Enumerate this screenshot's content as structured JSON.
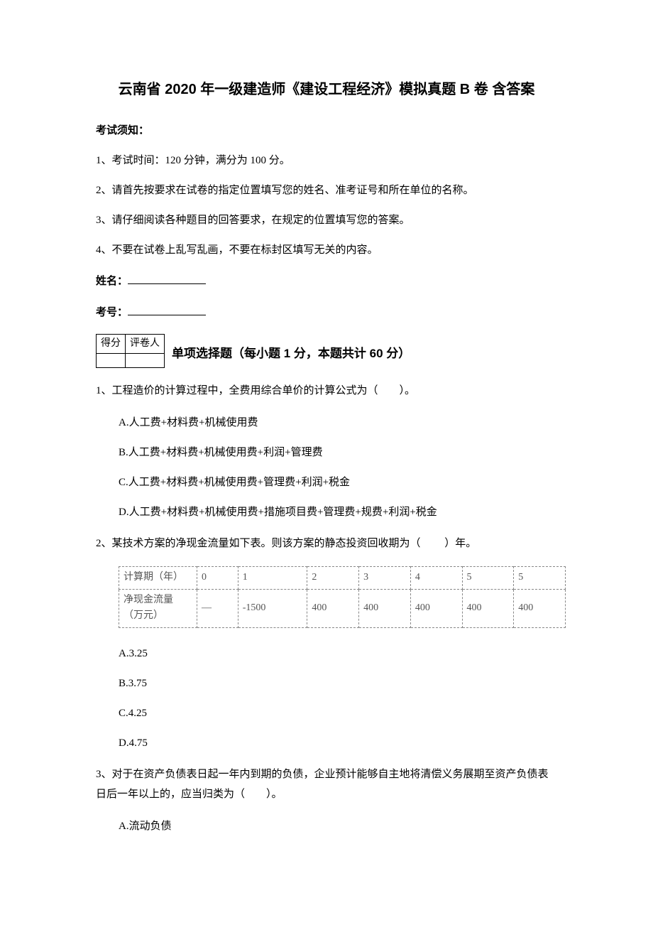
{
  "title": "云南省 2020 年一级建造师《建设工程经济》模拟真题 B 卷  含答案",
  "notice_heading": "考试须知：",
  "instructions": [
    "1、考试时间：120 分钟，满分为 100 分。",
    "2、请首先按要求在试卷的指定位置填写您的姓名、准考证号和所在单位的名称。",
    "3、请仔细阅读各种题目的回答要求，在规定的位置填写您的答案。",
    "4、不要在试卷上乱写乱画，不要在标封区填写无关的内容。"
  ],
  "name_label": "姓名：",
  "id_label": "考号：",
  "score_table": {
    "headers": [
      "得分",
      "评卷人"
    ]
  },
  "section_title": "单项选择题（每小题 1 分，本题共计 60 分）",
  "q1": {
    "stem": "1、工程造价的计算过程中，全费用综合单价的计算公式为（　　）。",
    "options": {
      "A": "A.人工费+材料费+机械使用费",
      "B": "B.人工费+材料费+机械使用费+利润+管理费",
      "C": "C.人工费+材料费+机械使用费+管理费+利润+税金",
      "D": "D.人工费+材料费+机械使用费+措施项目费+管理费+规费+利润+税金"
    }
  },
  "q2": {
    "stem": "2、某技术方案的净现金流量如下表。则该方案的静态投资回收期为（ 　　）年。",
    "table": {
      "row1_label": "计算期（年）",
      "row1": [
        "0",
        "1",
        "2",
        "3",
        "4",
        "5",
        "5"
      ],
      "row2_label": "净现金流量（万元）",
      "row2": [
        "—",
        "-1500",
        "400",
        "400",
        "400",
        "400",
        "400"
      ]
    },
    "options": {
      "A": "A.3.25",
      "B": "B.3.75",
      "C": "C.4.25",
      "D": "D.4.75"
    }
  },
  "q3": {
    "stem": "3、对于在资产负债表日起一年内到期的负债，企业预计能够自主地将清偿义务展期至资产负债表日后一年以上的，应当归类为（　　）。",
    "options": {
      "A": "A.流动负债"
    }
  },
  "colors": {
    "text": "#000000",
    "table_border_dashed": "#888888",
    "table_text": "#555555",
    "background": "#ffffff"
  },
  "typography": {
    "body_fontsize": 15,
    "title_fontsize": 20,
    "section_title_fontsize": 17,
    "table_fontsize": 14
  }
}
